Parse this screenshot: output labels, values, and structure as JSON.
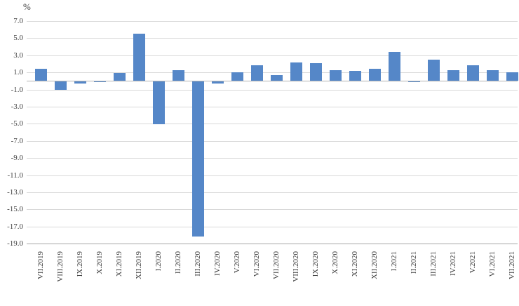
{
  "chart": {
    "unit_label": "%",
    "colors": {
      "bar": "#5587c8",
      "gridline": "#d9d9d9",
      "zero_line": "#b3b3b3",
      "bottom_line": "#a6a6a6",
      "text": "#404040"
    }
  },
  "chart_data": {
    "type": "bar",
    "title": "",
    "xlabel": "",
    "ylabel": "%",
    "legend": false,
    "grid": true,
    "ylim": [
      -19.0,
      7.0
    ],
    "ytick_step": 2.0,
    "ytick_labels": [
      "7.0",
      "5.0",
      "3.0",
      "1.0",
      "-1.0",
      "-3.0",
      "-5.0",
      "-7.0",
      "-9.0",
      "-11.0",
      "-13.0",
      "-15.0",
      "-17.0",
      "-19.0"
    ],
    "yticks": [
      7.0,
      5.0,
      3.0,
      1.0,
      -1.0,
      -3.0,
      -5.0,
      -7.0,
      -9.0,
      -11.0,
      -13.0,
      -15.0,
      -17.0,
      -19.0
    ],
    "categories": [
      "VII.2019",
      "VIII.2019",
      "IX.2019",
      "X.2019",
      "XI.2019",
      "XII.2019",
      "I.2020",
      "II.2020",
      "III.2020",
      "IV.2020",
      "V.2020",
      "VI.2020",
      "VII.2020",
      "VIII.2020",
      "IX.2020",
      "X.2020",
      "XI.2020",
      "XII.2020",
      "I.2021",
      "II.2021",
      "III.2021",
      "IV.2021",
      "V.2021",
      "VI.2021",
      "VII.2021"
    ],
    "values": [
      1.4,
      -1.0,
      -0.2,
      -0.1,
      0.9,
      5.5,
      -5.0,
      1.3,
      -18.1,
      -0.2,
      1.0,
      1.8,
      0.7,
      2.2,
      2.1,
      1.3,
      1.2,
      1.4,
      3.4,
      -0.1,
      2.5,
      1.3,
      1.8,
      1.3,
      1.0
    ]
  }
}
